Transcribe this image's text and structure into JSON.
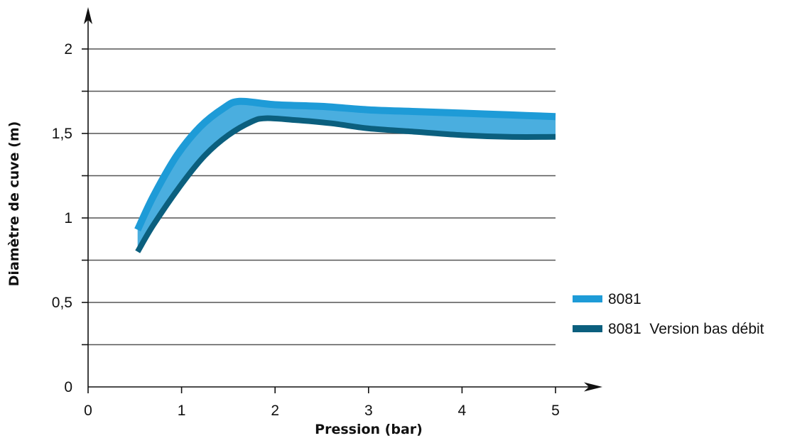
{
  "chart_data": {
    "type": "area",
    "xlabel": "Pression (bar)",
    "ylabel": "Diamètre de cuve (m)",
    "xlim": [
      0,
      5
    ],
    "ylim": [
      0,
      2.2
    ],
    "x_ticks": [
      0,
      1,
      2,
      3,
      4,
      5
    ],
    "x_tick_labels": [
      "0",
      "1",
      "2",
      "3",
      "4",
      "5"
    ],
    "y_ticks": [
      0,
      0.5,
      1,
      1.5,
      2
    ],
    "y_tick_labels": [
      "0",
      "0,5",
      "1",
      "1,5",
      "2"
    ],
    "y_gridlines": [
      0.25,
      0.5,
      0.75,
      1,
      1.25,
      1.5,
      1.75,
      2
    ],
    "grid": true,
    "legend_position": "right",
    "series": [
      {
        "name": "8081",
        "color": "#1e9bd7",
        "x": [
          0.53,
          0.7,
          0.95,
          1.2,
          1.45,
          1.62,
          2.0,
          2.5,
          3.0,
          3.5,
          4.0,
          4.5,
          5.0
        ],
        "values": [
          0.93,
          1.13,
          1.37,
          1.54,
          1.65,
          1.69,
          1.67,
          1.66,
          1.64,
          1.63,
          1.62,
          1.61,
          1.6
        ]
      },
      {
        "name": "8081  Version bas débit",
        "color": "#0b5f7e",
        "x": [
          0.53,
          0.7,
          1.0,
          1.25,
          1.5,
          1.75,
          1.9,
          2.2,
          2.6,
          3.0,
          3.5,
          4.0,
          4.5,
          5.0
        ],
        "values": [
          0.8,
          0.96,
          1.2,
          1.37,
          1.49,
          1.57,
          1.59,
          1.58,
          1.56,
          1.53,
          1.51,
          1.49,
          1.48,
          1.48
        ]
      }
    ],
    "band_fill_color": "#4aaedf"
  }
}
